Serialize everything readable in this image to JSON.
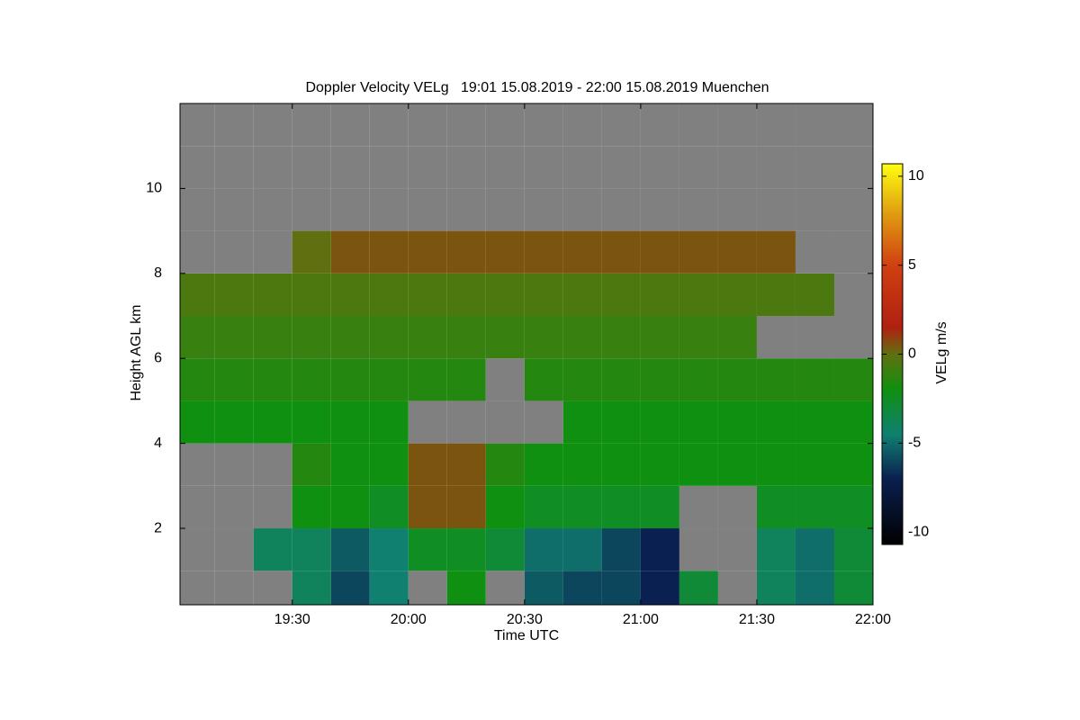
{
  "chart_data": {
    "type": "heatmap",
    "title": "Doppler Velocity VELg   19:01 15.08.2019 - 22:00 15.08.2019 Muenchen",
    "x_label": "Time UTC",
    "y_label": "Height AGL km",
    "colorbar_label": "VELg m/s",
    "x": [
      "19:05",
      "19:15",
      "19:25",
      "19:35",
      "19:45",
      "19:55",
      "20:05",
      "20:15",
      "20:25",
      "20:35",
      "20:45",
      "20:55",
      "21:05",
      "21:15",
      "21:25",
      "21:35",
      "21:45",
      "21:55"
    ],
    "y": [
      0.5,
      1.5,
      2.5,
      3.5,
      4.5,
      5.5,
      6.5,
      7.5,
      8.5,
      9.5,
      10.5,
      11.5
    ],
    "z": [
      [
        null,
        null,
        null,
        -4,
        -6,
        -4.5,
        null,
        -2,
        null,
        -5.5,
        -6,
        -6,
        -7,
        -3,
        null,
        -4,
        -5,
        -3
      ],
      [
        null,
        null,
        -4,
        -4,
        -5.5,
        -4.5,
        -2.5,
        -2.5,
        -3,
        -5,
        -5,
        -6,
        -7,
        null,
        null,
        -4,
        -5,
        -3
      ],
      [
        null,
        null,
        null,
        -2,
        -2,
        -2.5,
        0.5,
        0.5,
        -2,
        -2.5,
        -2.5,
        -2.5,
        -2.5,
        null,
        null,
        -2.5,
        -2.5,
        -2.5
      ],
      [
        null,
        null,
        null,
        -1.5,
        -2,
        -2,
        0.5,
        0.5,
        -1.5,
        -2,
        -2,
        -2,
        -2,
        -2,
        -2,
        -2,
        -2,
        -2
      ],
      [
        -2,
        -2,
        -2,
        -2,
        -2,
        -2,
        null,
        null,
        null,
        null,
        -2,
        -2,
        -2,
        -2,
        -2,
        -2,
        -2,
        -2
      ],
      [
        -1.5,
        -1.5,
        -1.5,
        -1.5,
        -1.5,
        -1.5,
        -1.5,
        -1.5,
        null,
        -1.5,
        -1.5,
        -1.5,
        -1.5,
        -1.5,
        -1.5,
        -1.5,
        -1.5,
        -1.5
      ],
      [
        -1,
        -1,
        -1,
        -1,
        -1,
        -1,
        -1,
        -1,
        -1,
        -1,
        -1,
        -1,
        -1,
        -1,
        -1,
        null,
        null,
        null
      ],
      [
        -0.5,
        -0.5,
        -0.5,
        -0.5,
        -0.5,
        -0.5,
        -0.5,
        -0.5,
        -0.5,
        -0.5,
        -0.5,
        -0.5,
        -0.5,
        -0.5,
        -0.5,
        -0.5,
        -0.5,
        null
      ],
      [
        null,
        null,
        null,
        0,
        0.5,
        0.5,
        0.5,
        0.5,
        0.5,
        0.5,
        0.5,
        0.5,
        0.5,
        0.5,
        0.5,
        0.5,
        null,
        null
      ],
      [
        null,
        null,
        null,
        null,
        null,
        null,
        null,
        null,
        null,
        null,
        null,
        null,
        null,
        null,
        null,
        null,
        null,
        null
      ],
      [
        null,
        null,
        null,
        null,
        null,
        null,
        null,
        null,
        null,
        null,
        null,
        null,
        null,
        null,
        null,
        null,
        null,
        null
      ],
      [
        null,
        null,
        null,
        null,
        null,
        null,
        null,
        null,
        null,
        null,
        null,
        null,
        null,
        null,
        null,
        null,
        null,
        null
      ]
    ],
    "xlim": [
      "19:01",
      "22:00"
    ],
    "xticks": [
      "19:30",
      "20:00",
      "20:30",
      "21:00",
      "21:30",
      "22:00"
    ],
    "ylim": [
      0.2,
      12
    ],
    "yticks": [
      2,
      4,
      6,
      8,
      10
    ],
    "clim": [
      -10.7,
      10.7
    ],
    "cticks": [
      -10,
      -5,
      0,
      5,
      10
    ],
    "missing_color": "#808080",
    "colorscale": [
      [
        -10.7,
        "#000000"
      ],
      [
        -7,
        "#0a2050"
      ],
      [
        -4.5,
        "#108070"
      ],
      [
        -2,
        "#109010"
      ],
      [
        0,
        "#607010"
      ],
      [
        1.5,
        "#b02010"
      ],
      [
        5,
        "#d04010"
      ],
      [
        8,
        "#e0a010"
      ],
      [
        10.7,
        "#ffff10"
      ]
    ]
  }
}
